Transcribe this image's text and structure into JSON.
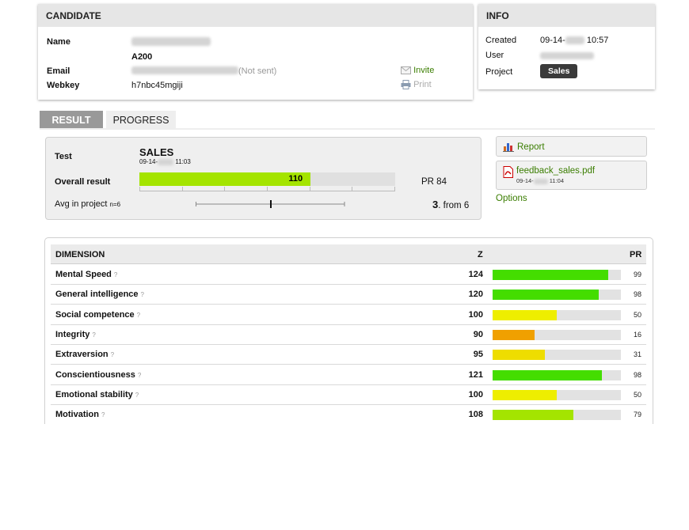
{
  "candidate": {
    "header": "CANDIDATE",
    "name_label": "Name",
    "code": "A200",
    "email_label": "Email",
    "email_status": "(Not sent)",
    "invite_label": "Invite",
    "webkey_label": "Webkey",
    "webkey_value": "h7nbc45mgiji",
    "print_label": "Print"
  },
  "info": {
    "header": "INFO",
    "created_label": "Created",
    "created_date_prefix": "09-14-",
    "created_time": "10:57",
    "user_label": "User",
    "project_label": "Project",
    "project_value": "Sales"
  },
  "tabs": [
    {
      "label": "RESULT",
      "active": true
    },
    {
      "label": "PROGRESS",
      "active": false
    }
  ],
  "result": {
    "test_label": "Test",
    "test_name": "SALES",
    "test_date_prefix": "09-14-",
    "test_time": "11:03",
    "overall_label": "Overall result",
    "overall_value": "110",
    "overall_fill": 0.67,
    "pr_text": "PR 84",
    "avg_label": "Avg in project",
    "avg_n": "n=6",
    "rank_value": "3",
    "rank_suffix": ". from 6"
  },
  "side": {
    "report_label": "Report",
    "file_name": "feedback_sales.pdf",
    "file_date_prefix": "09-14-",
    "file_time": "11:04",
    "options_label": "Options"
  },
  "dimensions": {
    "header_dimension": "DIMENSION",
    "header_z": "Z",
    "header_pr": "PR",
    "rows": [
      {
        "name": "Mental Speed",
        "z": "124",
        "pr": "99",
        "fill": 0.9,
        "color": "#44dd00"
      },
      {
        "name": "General intelligence",
        "z": "120",
        "pr": "98",
        "fill": 0.83,
        "color": "#44dd00"
      },
      {
        "name": "Social competence",
        "z": "100",
        "pr": "50",
        "fill": 0.5,
        "color": "#eeee00"
      },
      {
        "name": "Integrity",
        "z": "90",
        "pr": "16",
        "fill": 0.33,
        "color": "#f0a000"
      },
      {
        "name": "Extraversion",
        "z": "95",
        "pr": "31",
        "fill": 0.41,
        "color": "#eedd00"
      },
      {
        "name": "Conscientiousness",
        "z": "121",
        "pr": "98",
        "fill": 0.85,
        "color": "#44dd00"
      },
      {
        "name": "Emotional stability",
        "z": "100",
        "pr": "50",
        "fill": 0.5,
        "color": "#eeee00"
      },
      {
        "name": "Motivation",
        "z": "108",
        "pr": "79",
        "fill": 0.63,
        "color": "#a4e400"
      }
    ]
  }
}
